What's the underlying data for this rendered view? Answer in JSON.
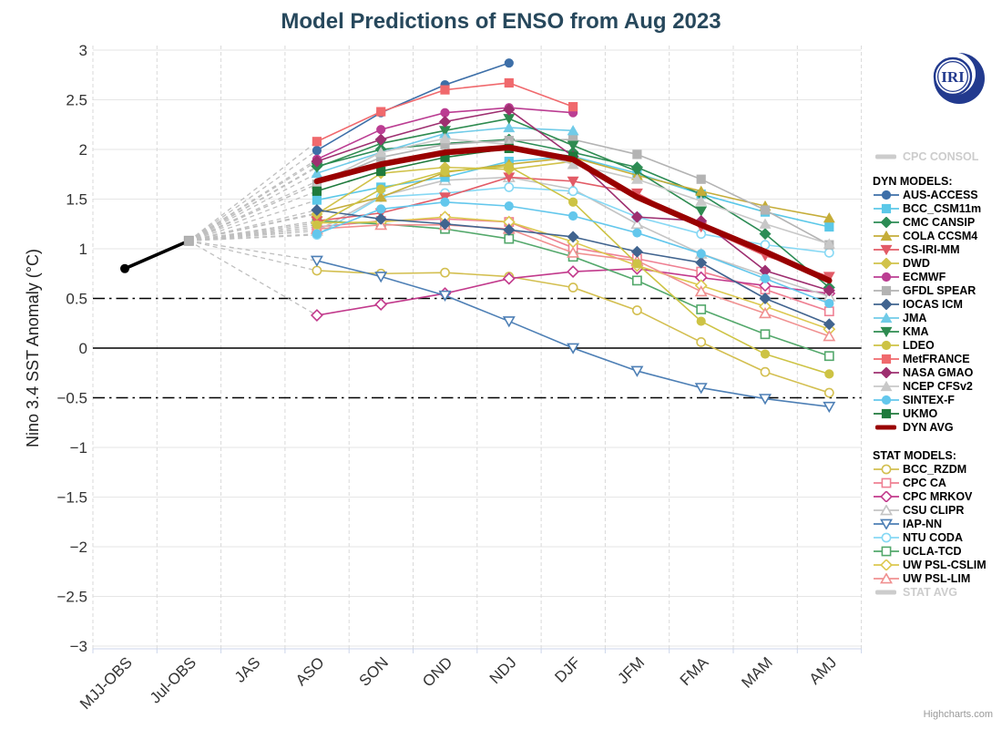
{
  "header": {
    "title": "Model Predictions of ENSO from Aug 2023"
  },
  "branding": {
    "logo_text": "IRI",
    "credit": "Highcharts.com"
  },
  "axes": {
    "y": {
      "title": "Nino 3.4 SST Anomaly (°C)",
      "min": -3,
      "max": 3,
      "tick_interval": 0.5,
      "tick_labels": [
        "3",
        "2.5",
        "2",
        "1.5",
        "1",
        "0.5",
        "0",
        "−0.5",
        "−1",
        "−1.5",
        "−2",
        "−2.5",
        "−3"
      ]
    },
    "x": {
      "categories": [
        "MJJ-OBS",
        "Jul-OBS",
        "JAS",
        "ASO",
        "SON",
        "OND",
        "NDJ",
        "DJF",
        "JFM",
        "FMA",
        "MAM",
        "AMJ"
      ]
    },
    "reference_lines": {
      "zero": 0,
      "el_nino_threshold": 0.5,
      "la_nina_threshold": -0.5
    }
  },
  "chart_data": {
    "type": "line",
    "title": "Model Predictions of ENSO from Aug 2023",
    "ylabel": "Nino 3.4 SST Anomaly (°C)",
    "ylim": [
      -3,
      3
    ],
    "grid": true,
    "legend_position": "right",
    "categories": [
      "MJJ-OBS",
      "Jul-OBS",
      "JAS",
      "ASO",
      "SON",
      "OND",
      "NDJ",
      "DJF",
      "JFM",
      "FMA",
      "MAM",
      "AMJ"
    ],
    "forecast_start_index": 3,
    "legend_headers": {
      "dyn": "DYN MODELS:",
      "stat": "STAT MODELS:"
    },
    "observations": {
      "name": "OBS",
      "color": "#000000",
      "points": [
        {
          "category": "MJJ-OBS",
          "value": 0.8
        },
        {
          "category": "Jul-OBS",
          "value": 1.08
        }
      ]
    },
    "fan": {
      "style": "dashed",
      "color": "#bfbfbf",
      "from_category": "Jul-OBS",
      "from_value": 1.08,
      "to_category": "ASO"
    },
    "series": [
      {
        "name": "CPC CONSOL",
        "group": "CONSOL",
        "marker": "avg-line",
        "color": "#cccccc",
        "disabled": true,
        "values": [
          null,
          null,
          null,
          null,
          null,
          null,
          null,
          null,
          null
        ]
      },
      {
        "name": "AUS-ACCESS",
        "group": "DYN",
        "marker": "circle",
        "filled": true,
        "color": "#3d6fa8",
        "values": [
          1.99,
          2.37,
          2.65,
          2.87,
          null,
          null,
          null,
          null,
          null
        ]
      },
      {
        "name": "BCC_CSM11m",
        "group": "DYN",
        "marker": "square",
        "filled": true,
        "color": "#5bc8e8",
        "values": [
          1.49,
          1.62,
          1.72,
          1.88,
          1.93,
          1.76,
          1.55,
          1.37,
          1.22
        ]
      },
      {
        "name": "CMC CANSIP",
        "group": "DYN",
        "marker": "diamond",
        "filled": true,
        "color": "#2c8c55",
        "values": [
          1.83,
          2.0,
          2.06,
          2.1,
          1.97,
          1.82,
          1.55,
          1.15,
          0.61
        ]
      },
      {
        "name": "COLA CCSM4",
        "group": "DYN",
        "marker": "triangle",
        "filled": true,
        "color": "#c5ad39",
        "values": [
          1.36,
          1.52,
          1.77,
          1.85,
          1.92,
          1.74,
          1.58,
          1.43,
          1.31
        ]
      },
      {
        "name": "CS-IRI-MM",
        "group": "DYN",
        "marker": "triangle-down",
        "filled": true,
        "color": "#e25b66",
        "values": [
          1.28,
          1.36,
          1.52,
          1.72,
          1.68,
          1.56,
          1.22,
          0.93,
          0.72
        ]
      },
      {
        "name": "DWD",
        "group": "DYN",
        "marker": "diamond",
        "filled": true,
        "color": "#d1c24a",
        "values": [
          1.35,
          1.76,
          1.82,
          1.8,
          1.88,
          null,
          null,
          null,
          null
        ]
      },
      {
        "name": "ECMWF",
        "group": "DYN",
        "marker": "circle",
        "filled": true,
        "color": "#bb3d92",
        "values": [
          1.9,
          2.2,
          2.37,
          2.42,
          2.37,
          null,
          null,
          null,
          null
        ]
      },
      {
        "name": "GFDL SPEAR",
        "group": "DYN",
        "marker": "square",
        "filled": true,
        "color": "#b3b3b3",
        "values": [
          1.65,
          1.92,
          2.05,
          2.09,
          2.1,
          1.95,
          1.7,
          1.39,
          1.04
        ]
      },
      {
        "name": "IOCAS ICM",
        "group": "DYN",
        "marker": "diamond",
        "filled": true,
        "color": "#41648f",
        "values": [
          1.39,
          1.3,
          1.25,
          1.19,
          1.12,
          0.97,
          0.86,
          0.5,
          0.24
        ]
      },
      {
        "name": "JMA",
        "group": "DYN",
        "marker": "triangle",
        "filled": true,
        "color": "#70cbe8",
        "values": [
          1.76,
          1.97,
          2.16,
          2.22,
          2.19,
          null,
          null,
          null,
          null
        ]
      },
      {
        "name": "KMA",
        "group": "DYN",
        "marker": "triangle-down",
        "filled": true,
        "color": "#2e8b50",
        "values": [
          1.82,
          2.06,
          2.19,
          2.31,
          2.04,
          1.78,
          1.38,
          null,
          null
        ]
      },
      {
        "name": "LDEO",
        "group": "DYN",
        "marker": "circle",
        "filled": true,
        "color": "#cdc344",
        "values": [
          1.24,
          1.6,
          1.78,
          1.83,
          1.47,
          0.85,
          0.27,
          -0.06,
          -0.26
        ]
      },
      {
        "name": "MetFRANCE",
        "group": "DYN",
        "marker": "square",
        "filled": true,
        "color": "#f0696d",
        "values": [
          2.08,
          2.38,
          2.6,
          2.67,
          2.43,
          null,
          null,
          null,
          null
        ]
      },
      {
        "name": "NASA GMAO",
        "group": "DYN",
        "marker": "diamond",
        "filled": true,
        "color": "#9e2f70",
        "values": [
          1.88,
          2.1,
          2.28,
          2.4,
          1.93,
          1.32,
          1.28,
          0.78,
          0.58
        ]
      },
      {
        "name": "NCEP CFSv2",
        "group": "DYN",
        "marker": "triangle",
        "filled": true,
        "color": "#c8c8c8",
        "values": [
          1.65,
          1.97,
          2.11,
          2.05,
          1.85,
          1.7,
          1.48,
          1.25,
          1.05
        ]
      },
      {
        "name": "SINTEX-F",
        "group": "DYN",
        "marker": "circle",
        "filled": true,
        "color": "#63c7ec",
        "values": [
          1.15,
          1.4,
          1.47,
          1.43,
          1.33,
          1.16,
          0.95,
          0.7,
          0.45
        ]
      },
      {
        "name": "UKMO",
        "group": "DYN",
        "marker": "square",
        "filled": true,
        "color": "#1f7a3c",
        "values": [
          1.58,
          1.78,
          1.92,
          2.01,
          1.93,
          null,
          null,
          null,
          null
        ]
      },
      {
        "name": "DYN AVG",
        "group": "DYN",
        "marker": "avg-line",
        "color": "#990000",
        "values": [
          1.68,
          1.85,
          1.97,
          2.02,
          1.9,
          1.52,
          1.24,
          0.97,
          0.68
        ]
      },
      {
        "name": "BCC_RZDM",
        "group": "STAT",
        "marker": "circle",
        "filled": false,
        "color": "#d3bf50",
        "values": [
          0.78,
          0.75,
          0.76,
          0.72,
          0.61,
          0.38,
          0.06,
          -0.24,
          -0.45
        ]
      },
      {
        "name": "CPC CA",
        "group": "STAT",
        "marker": "square",
        "filled": false,
        "color": "#ef8093",
        "values": [
          1.22,
          1.28,
          1.3,
          1.27,
          1.01,
          0.9,
          0.77,
          0.59,
          0.37
        ]
      },
      {
        "name": "CPC MRKOV",
        "group": "STAT",
        "marker": "diamond",
        "filled": false,
        "color": "#c23a8c",
        "values": [
          0.33,
          0.44,
          0.55,
          0.7,
          0.77,
          0.8,
          0.71,
          0.63,
          0.55
        ]
      },
      {
        "name": "CSU CLIPR",
        "group": "STAT",
        "marker": "triangle",
        "filled": false,
        "color": "#c4c4c4",
        "values": [
          1.18,
          1.53,
          1.69,
          1.72,
          1.6,
          1.25,
          0.95,
          0.73,
          0.52
        ]
      },
      {
        "name": "IAP-NN",
        "group": "STAT",
        "marker": "triangle-down",
        "filled": false,
        "color": "#4d7fb5",
        "values": [
          0.88,
          0.72,
          0.53,
          0.27,
          0.0,
          -0.23,
          -0.4,
          -0.51,
          -0.59
        ]
      },
      {
        "name": "NTU CODA",
        "group": "STAT",
        "marker": "circle",
        "filled": false,
        "color": "#86d8f4",
        "values": [
          1.14,
          1.52,
          1.56,
          1.62,
          1.58,
          1.32,
          1.15,
          1.04,
          0.96
        ]
      },
      {
        "name": "UCLA-TCD",
        "group": "STAT",
        "marker": "square",
        "filled": false,
        "color": "#53a86b",
        "values": [
          1.28,
          1.25,
          1.2,
          1.1,
          0.92,
          0.68,
          0.39,
          0.14,
          -0.08
        ]
      },
      {
        "name": "UW PSL-CSLIM",
        "group": "STAT",
        "marker": "diamond",
        "filled": false,
        "color": "#dcc84f",
        "values": [
          1.26,
          1.27,
          1.32,
          1.27,
          1.07,
          0.83,
          0.63,
          0.42,
          0.19
        ]
      },
      {
        "name": "UW PSL-LIM",
        "group": "STAT",
        "marker": "triangle",
        "filled": false,
        "color": "#f09090",
        "values": [
          1.2,
          1.24,
          1.24,
          1.2,
          0.96,
          0.88,
          0.57,
          0.35,
          0.12
        ]
      },
      {
        "name": "STAT AVG",
        "group": "STAT",
        "marker": "avg-line",
        "color": "#cccccc",
        "disabled": true,
        "values": [
          null,
          null,
          null,
          null,
          null,
          null,
          null,
          null,
          null
        ]
      }
    ]
  }
}
